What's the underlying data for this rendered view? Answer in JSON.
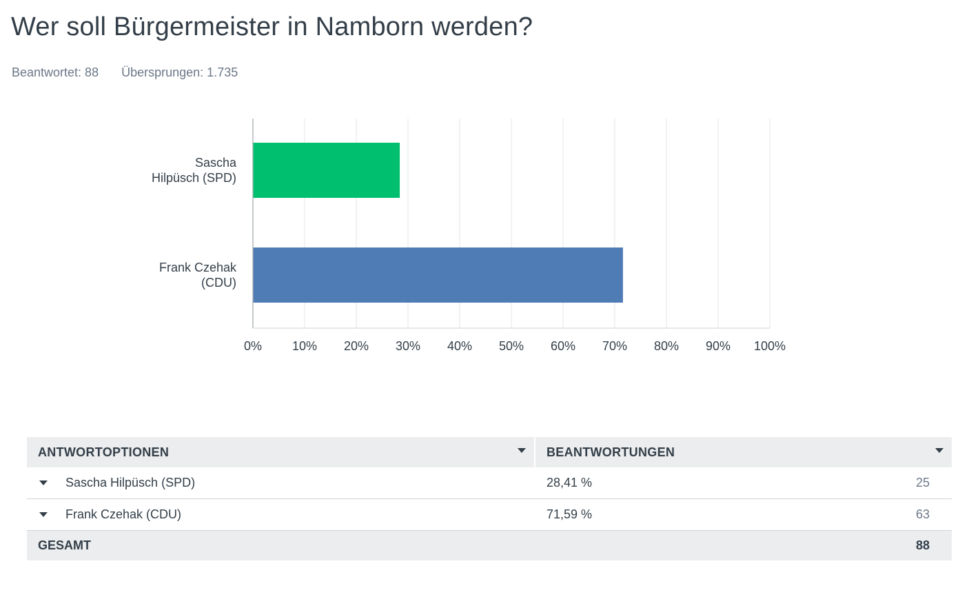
{
  "title": "Wer soll Bürgermeister in Namborn werden?",
  "meta": {
    "answered": "Beantwortet: 88",
    "skipped": "Übersprungen: 1.735"
  },
  "chart_data": {
    "type": "bar",
    "orientation": "horizontal",
    "categories": [
      "Sascha Hilpüsch (SPD)",
      "Frank Czehak (CDU)"
    ],
    "category_lines": [
      [
        "Sascha",
        "Hilpüsch (SPD)"
      ],
      [
        "Frank Czehak",
        "(CDU)"
      ]
    ],
    "values": [
      28.41,
      71.59
    ],
    "colors": [
      "#00bf6f",
      "#507cb6"
    ],
    "xlim": [
      0,
      100
    ],
    "ticks": [
      0,
      10,
      20,
      30,
      40,
      50,
      60,
      70,
      80,
      90,
      100
    ],
    "tick_suffix": "%",
    "grid": true
  },
  "table": {
    "headers": [
      "ANTWORTOPTIONEN",
      "BEANTWORTUNGEN"
    ],
    "rows": [
      {
        "option": "Sascha Hilpüsch (SPD)",
        "percent": "28,41 %",
        "count": "25"
      },
      {
        "option": "Frank Czehak (CDU)",
        "percent": "71,59 %",
        "count": "63"
      }
    ],
    "total_label": "GESAMT",
    "total_count": "88"
  }
}
